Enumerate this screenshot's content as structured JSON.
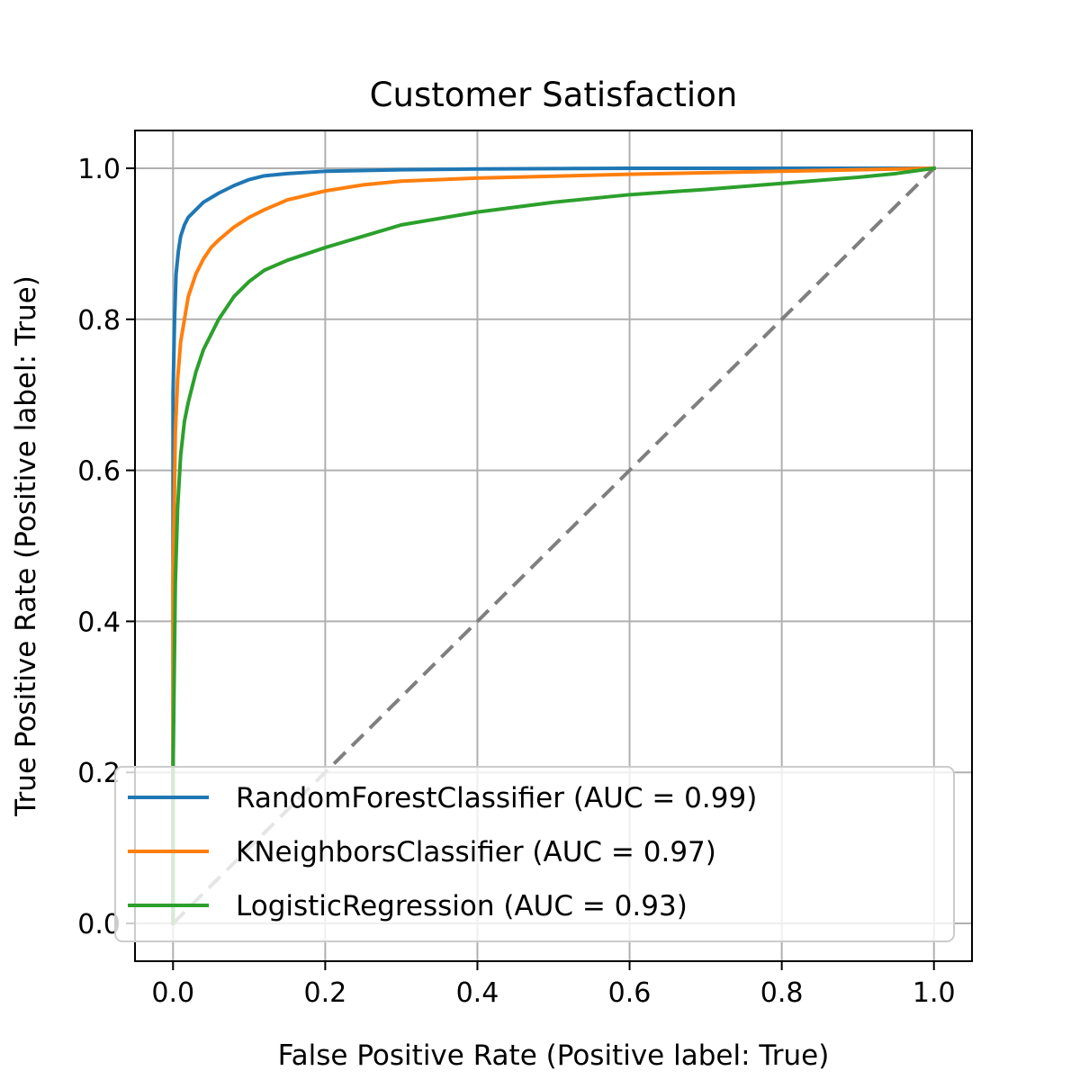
{
  "chart_data": {
    "type": "line",
    "title": "Customer Satisfaction",
    "xlabel": "False Positive Rate (Positive label: True)",
    "ylabel": "True Positive Rate (Positive label: True)",
    "xlim": [
      -0.05,
      1.05
    ],
    "ylim": [
      -0.05,
      1.05
    ],
    "x_ticks": [
      "0.0",
      "0.2",
      "0.4",
      "0.6",
      "0.8",
      "1.0"
    ],
    "y_ticks": [
      "0.0",
      "0.2",
      "0.4",
      "0.6",
      "0.8",
      "1.0"
    ],
    "grid": true,
    "legend_position": "lower-right",
    "chance_line": {
      "x": [
        0,
        1
      ],
      "y": [
        0,
        1
      ],
      "style": "dashed",
      "color": "#7f7f7f"
    },
    "series": [
      {
        "name": "RandomForestClassifier (AUC = 0.99)",
        "color": "#1f77b4",
        "x": [
          0,
          0,
          0.002,
          0.004,
          0.007,
          0.01,
          0.015,
          0.02,
          0.03,
          0.04,
          0.06,
          0.08,
          0.1,
          0.12,
          0.15,
          0.2,
          0.3,
          0.4,
          0.6,
          0.8,
          1.0
        ],
        "y": [
          0,
          0.7,
          0.8,
          0.86,
          0.89,
          0.91,
          0.925,
          0.935,
          0.945,
          0.955,
          0.967,
          0.977,
          0.985,
          0.99,
          0.993,
          0.996,
          0.998,
          0.999,
          1.0,
          1.0,
          1.0
        ]
      },
      {
        "name": "KNeighborsClassifier (AUC = 0.97)",
        "color": "#ff7f0e",
        "x": [
          0,
          0,
          0.003,
          0.006,
          0.01,
          0.015,
          0.02,
          0.03,
          0.04,
          0.05,
          0.06,
          0.08,
          0.1,
          0.12,
          0.15,
          0.2,
          0.25,
          0.3,
          0.4,
          0.6,
          0.8,
          1.0
        ],
        "y": [
          0,
          0.45,
          0.65,
          0.72,
          0.77,
          0.8,
          0.83,
          0.86,
          0.88,
          0.895,
          0.905,
          0.922,
          0.935,
          0.945,
          0.958,
          0.97,
          0.978,
          0.983,
          0.987,
          0.992,
          0.996,
          1.0
        ]
      },
      {
        "name": "LogisticRegression (AUC = 0.93)",
        "color": "#2ca02c",
        "x": [
          0,
          0,
          0.003,
          0.006,
          0.01,
          0.015,
          0.02,
          0.03,
          0.04,
          0.05,
          0.06,
          0.08,
          0.1,
          0.12,
          0.15,
          0.2,
          0.25,
          0.3,
          0.4,
          0.5,
          0.6,
          0.7,
          0.8,
          0.9,
          0.95,
          1.0
        ],
        "y": [
          0,
          0.2,
          0.45,
          0.55,
          0.62,
          0.665,
          0.69,
          0.73,
          0.76,
          0.78,
          0.8,
          0.83,
          0.85,
          0.865,
          0.878,
          0.895,
          0.91,
          0.925,
          0.942,
          0.955,
          0.965,
          0.972,
          0.98,
          0.988,
          0.993,
          1.0
        ]
      }
    ]
  }
}
